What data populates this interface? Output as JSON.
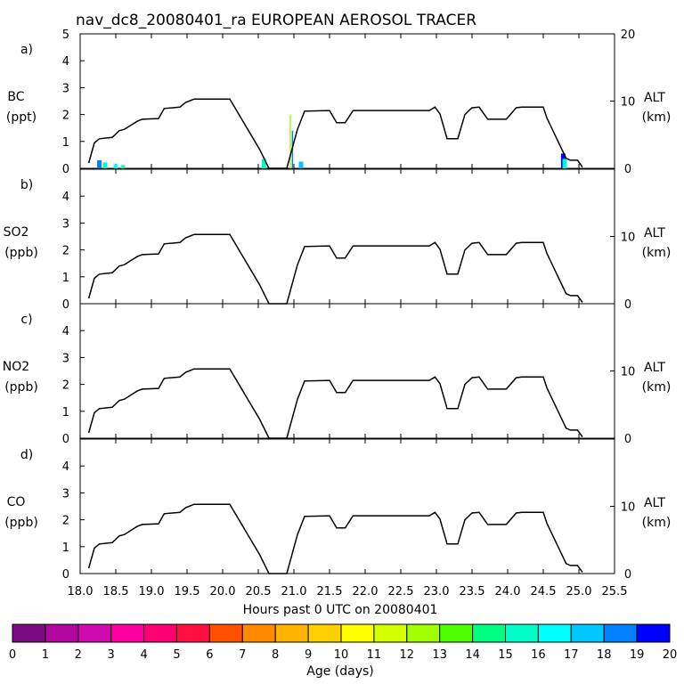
{
  "title": "nav_dc8_20080401_ra EUROPEAN AEROSOL TRACER",
  "xlabel": "Hours past 0 UTC on 20080401",
  "colorbar": {
    "label": "Age (days)",
    "ticks": [
      "0",
      "1",
      "2",
      "3",
      "4",
      "5",
      "6",
      "7",
      "8",
      "9",
      "10",
      "11",
      "12",
      "13",
      "14",
      "15",
      "16",
      "17",
      "18",
      "19",
      "20"
    ],
    "colors": [
      "#7a0a7f",
      "#b2069f",
      "#cf0bb0",
      "#ff00a0",
      "#ff0070",
      "#ff1040",
      "#ff5000",
      "#ff8a00",
      "#ffb400",
      "#ffd000",
      "#ffff00",
      "#d4ff00",
      "#a0ff00",
      "#50ff00",
      "#00ff80",
      "#00ffc8",
      "#00ffff",
      "#00c8ff",
      "#0080ff",
      "#0000ff",
      "#7000ff"
    ]
  },
  "chart_data": {
    "type": "line",
    "x_range": [
      18.0,
      25.5
    ],
    "x_ticks": [
      "18.0",
      "18.5",
      "19.0",
      "19.5",
      "20.0",
      "20.5",
      "21.0",
      "21.5",
      "22.0",
      "22.5",
      "23.0",
      "23.5",
      "24.0",
      "24.5",
      "25.0",
      "25.5"
    ],
    "altitude_axis": {
      "label": "ALT",
      "unit": "(km)",
      "range": [
        0,
        20
      ],
      "ticks": [
        "0",
        "10",
        "20"
      ]
    },
    "panels": [
      {
        "id": "a",
        "letter": "a)",
        "species": "BC",
        "unit": "(ppt)",
        "ylim": [
          0,
          5
        ],
        "y_ticks": [
          "0",
          "1",
          "2",
          "3",
          "4",
          "5"
        ],
        "right_ticks": [
          "0",
          "10",
          "20"
        ]
      },
      {
        "id": "b",
        "letter": "b)",
        "species": "SO2",
        "unit": "(ppb)",
        "ylim": [
          0,
          5
        ],
        "y_ticks": [
          "0",
          "1",
          "2",
          "3",
          "4"
        ],
        "right_ticks": [
          "0",
          "10"
        ]
      },
      {
        "id": "c",
        "letter": "c)",
        "species": "NO2",
        "unit": "(ppb)",
        "ylim": [
          0,
          5
        ],
        "y_ticks": [
          "0",
          "1",
          "2",
          "3",
          "4"
        ],
        "right_ticks": [
          "0",
          "10"
        ]
      },
      {
        "id": "d",
        "letter": "d)",
        "species": "CO",
        "unit": "(ppb)",
        "ylim": [
          0,
          5
        ],
        "y_ticks": [
          "0",
          "1",
          "2",
          "3",
          "4"
        ],
        "right_ticks": [
          "0",
          "10"
        ]
      }
    ],
    "altitude_series": {
      "name": "ALT (km)",
      "x": [
        18.12,
        18.2,
        18.27,
        18.45,
        18.55,
        18.62,
        18.8,
        18.87,
        19.1,
        19.18,
        19.4,
        19.48,
        19.6,
        20.0,
        20.1,
        20.52,
        20.65,
        20.9,
        21.05,
        21.15,
        21.5,
        21.6,
        21.72,
        21.83,
        21.92,
        22.9,
        22.98,
        23.05,
        23.15,
        23.3,
        23.4,
        23.5,
        23.6,
        23.72,
        23.9,
        23.98,
        24.12,
        24.2,
        24.5,
        24.55,
        24.82,
        24.88,
        24.98,
        25.05
      ],
      "values": [
        0.8,
        3.8,
        4.4,
        4.6,
        5.6,
        5.8,
        7.0,
        7.3,
        7.4,
        8.9,
        9.1,
        9.8,
        10.3,
        10.3,
        10.3,
        2.8,
        0.0,
        0.0,
        5.8,
        8.5,
        8.6,
        6.8,
        6.8,
        8.6,
        8.6,
        8.6,
        9.1,
        8.1,
        4.4,
        4.4,
        8.0,
        9.0,
        9.1,
        7.3,
        7.3,
        7.3,
        9.0,
        9.1,
        9.1,
        7.5,
        1.5,
        1.2,
        1.2,
        0.2
      ]
    },
    "bc_tracer": {
      "description": "BC tracer concentrations (ppt) colored by age (days), panel a only",
      "spikes": [
        {
          "x": 18.27,
          "value": 0.3,
          "age": 18
        },
        {
          "x": 18.35,
          "value": 0.22,
          "age": 15
        },
        {
          "x": 18.5,
          "value": 0.15,
          "age": 16
        },
        {
          "x": 18.6,
          "value": 0.12,
          "age": 15
        },
        {
          "x": 20.58,
          "value": 0.35,
          "age": 15
        },
        {
          "x": 20.95,
          "value": 2.0,
          "age": 12
        },
        {
          "x": 20.98,
          "value": 1.4,
          "age": 18
        },
        {
          "x": 21.1,
          "value": 0.25,
          "age": 17
        },
        {
          "x": 24.78,
          "value": 0.55,
          "age": 19
        },
        {
          "x": 24.8,
          "value": 0.35,
          "age": 15
        }
      ]
    }
  }
}
